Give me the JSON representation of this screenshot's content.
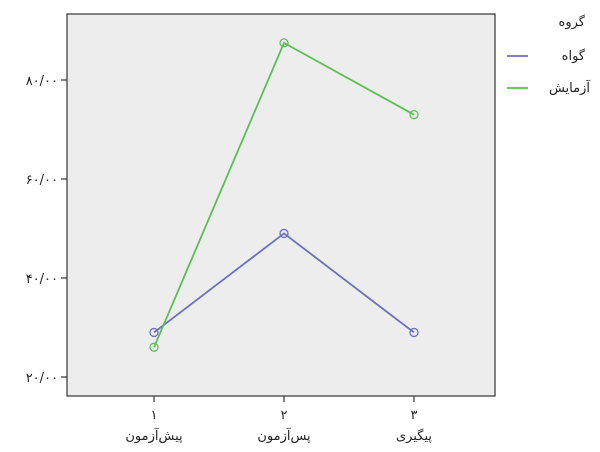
{
  "chart_data": {
    "type": "line",
    "categories": [
      "۱",
      "۲",
      "۳"
    ],
    "category_sublabels": [
      "پیش‌آزمون",
      "پس‌آزمون",
      "پیگیری"
    ],
    "y_tick_labels": [
      "۲۰/۰۰",
      "۴۰/۰۰",
      "۶۰/۰۰",
      "۸۰/۰۰"
    ],
    "y_tick_values": [
      20,
      40,
      60,
      80
    ],
    "ylim": [
      20,
      80
    ],
    "grid": false,
    "legend_title": "گروه",
    "legend_position": "top-right",
    "series": [
      {
        "name": "گواه",
        "color": "#6b6fc0",
        "values": [
          29,
          49,
          29
        ]
      },
      {
        "name": "آزمایش",
        "color": "#5cbf55",
        "values": [
          26,
          87.5,
          73
        ]
      }
    ]
  },
  "colors": {
    "plot_background": "#ededed",
    "axis": "#333333"
  }
}
